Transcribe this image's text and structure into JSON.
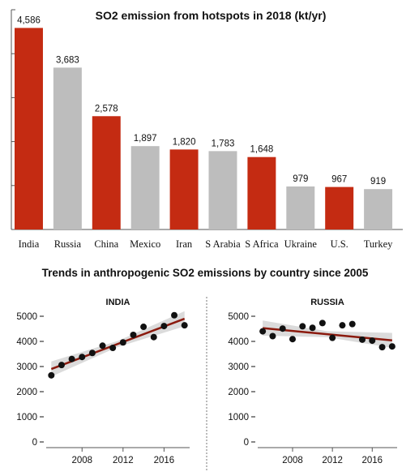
{
  "chart_data": [
    {
      "type": "bar",
      "title": "SO2 emission from hotspots in 2018 (kt/yr)",
      "categories": [
        "India",
        "Russia",
        "China",
        "Mexico",
        "Iran",
        "S Arabia",
        "S Africa",
        "Ukraine",
        "U.S.",
        "Turkey"
      ],
      "values": [
        4586,
        3683,
        2578,
        1897,
        1820,
        1783,
        1648,
        979,
        967,
        919
      ],
      "value_labels": [
        "4,586",
        "3,683",
        "2,578",
        "1,897",
        "1,820",
        "1,783",
        "1,648",
        "979",
        "967",
        "919"
      ],
      "highlighted": [
        true,
        false,
        true,
        false,
        true,
        false,
        true,
        false,
        true,
        false
      ],
      "ylim": [
        0,
        5000
      ],
      "grid": false,
      "colors": {
        "highlight": "#c42b12",
        "normal": "#bdbdbd",
        "axis": "#555555"
      }
    },
    {
      "type": "scatter",
      "title": "Trends in anthropogenic SO2 emissions by country since 2005",
      "panels": [
        {
          "name": "INDIA",
          "x": [
            2005,
            2006,
            2007,
            2008,
            2009,
            2010,
            2011,
            2012,
            2013,
            2014,
            2015,
            2016,
            2017,
            2018
          ],
          "y": [
            2650,
            3060,
            3300,
            3380,
            3540,
            3830,
            3740,
            3960,
            4260,
            4580,
            4170,
            4610,
            5040,
            4640
          ],
          "trend": [
            2900,
            4900
          ]
        },
        {
          "name": "RUSSIA",
          "x": [
            2005,
            2006,
            2007,
            2008,
            2009,
            2010,
            2011,
            2012,
            2013,
            2014,
            2015,
            2016,
            2017,
            2018
          ],
          "y": [
            4400,
            4210,
            4510,
            4090,
            4600,
            4540,
            4730,
            4140,
            4640,
            4690,
            4070,
            4030,
            3770,
            3800
          ],
          "trend": [
            4530,
            4040
          ]
        }
      ],
      "yticks": [
        0,
        1000,
        2000,
        3000,
        4000,
        5000
      ],
      "ytick_labels": [
        "0",
        "1000",
        "2000",
        "3000",
        "4000",
        "5000"
      ],
      "xticks": [
        2008,
        2012,
        2016
      ],
      "xtick_labels": [
        "2008",
        "2012",
        "2016"
      ],
      "xlim": [
        2004.5,
        2018.5
      ],
      "ylim": [
        0,
        5000
      ],
      "colors": {
        "point": "#111111",
        "trend": "#8b1a0e",
        "band": "#cccccc",
        "axis": "#555555"
      }
    }
  ]
}
